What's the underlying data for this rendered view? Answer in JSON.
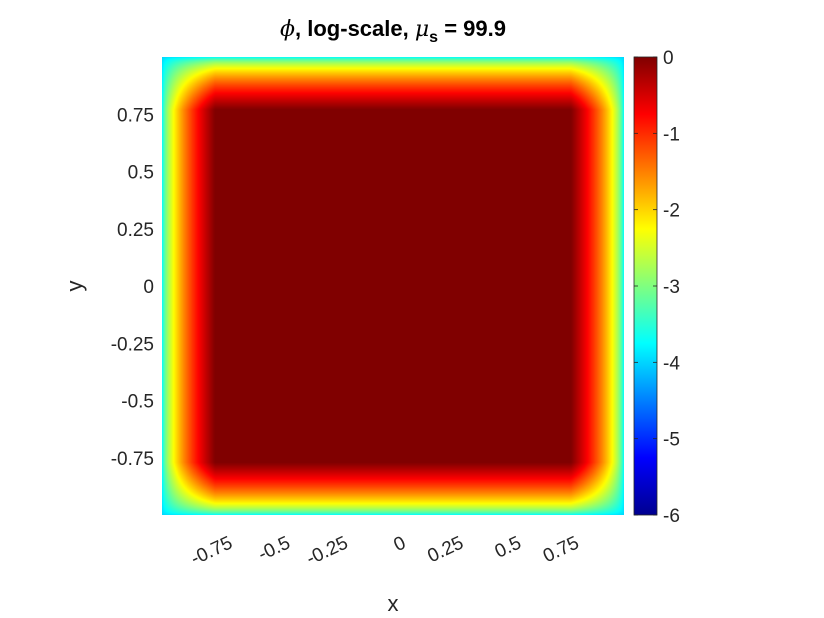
{
  "chart_data": {
    "type": "heatmap",
    "title": {
      "symbol": "ϕ",
      "middle": ", log-scale, ",
      "mu_symbol": "μ",
      "mu_subscript": "s",
      "tail": " = 99.9"
    },
    "xlabel": "x",
    "ylabel": "y",
    "xlim": [
      -1,
      1
    ],
    "ylim": [
      -1,
      1
    ],
    "x_ticks": [
      -0.75,
      -0.5,
      -0.25,
      0,
      0.25,
      0.5,
      0.75
    ],
    "x_tick_labels": [
      "-0.75",
      "-0.5",
      "-0.25",
      "0",
      "0.25",
      "0.5",
      "0.75"
    ],
    "y_ticks": [
      0.75,
      0.5,
      0.25,
      0,
      -0.25,
      -0.5,
      -0.75
    ],
    "y_tick_labels": [
      "0.75",
      "0.5",
      "0.25",
      "0",
      "-0.25",
      "-0.5",
      "-0.75"
    ],
    "colormap": "jet",
    "colorbar": {
      "range": [
        -6,
        0
      ],
      "ticks": [
        0,
        -1,
        -2,
        -3,
        -4,
        -5,
        -6
      ],
      "tick_labels": [
        "0",
        "-1",
        "-2",
        "-3",
        "-4",
        "-5",
        "-6"
      ]
    },
    "field": {
      "description_values": "phi is ~0 (log10) in the interior, decaying to about -4 at the edges and lower at the corners",
      "interior_value": 0,
      "edge_value": -4,
      "corner_value": -4.8
    },
    "grid": false
  }
}
